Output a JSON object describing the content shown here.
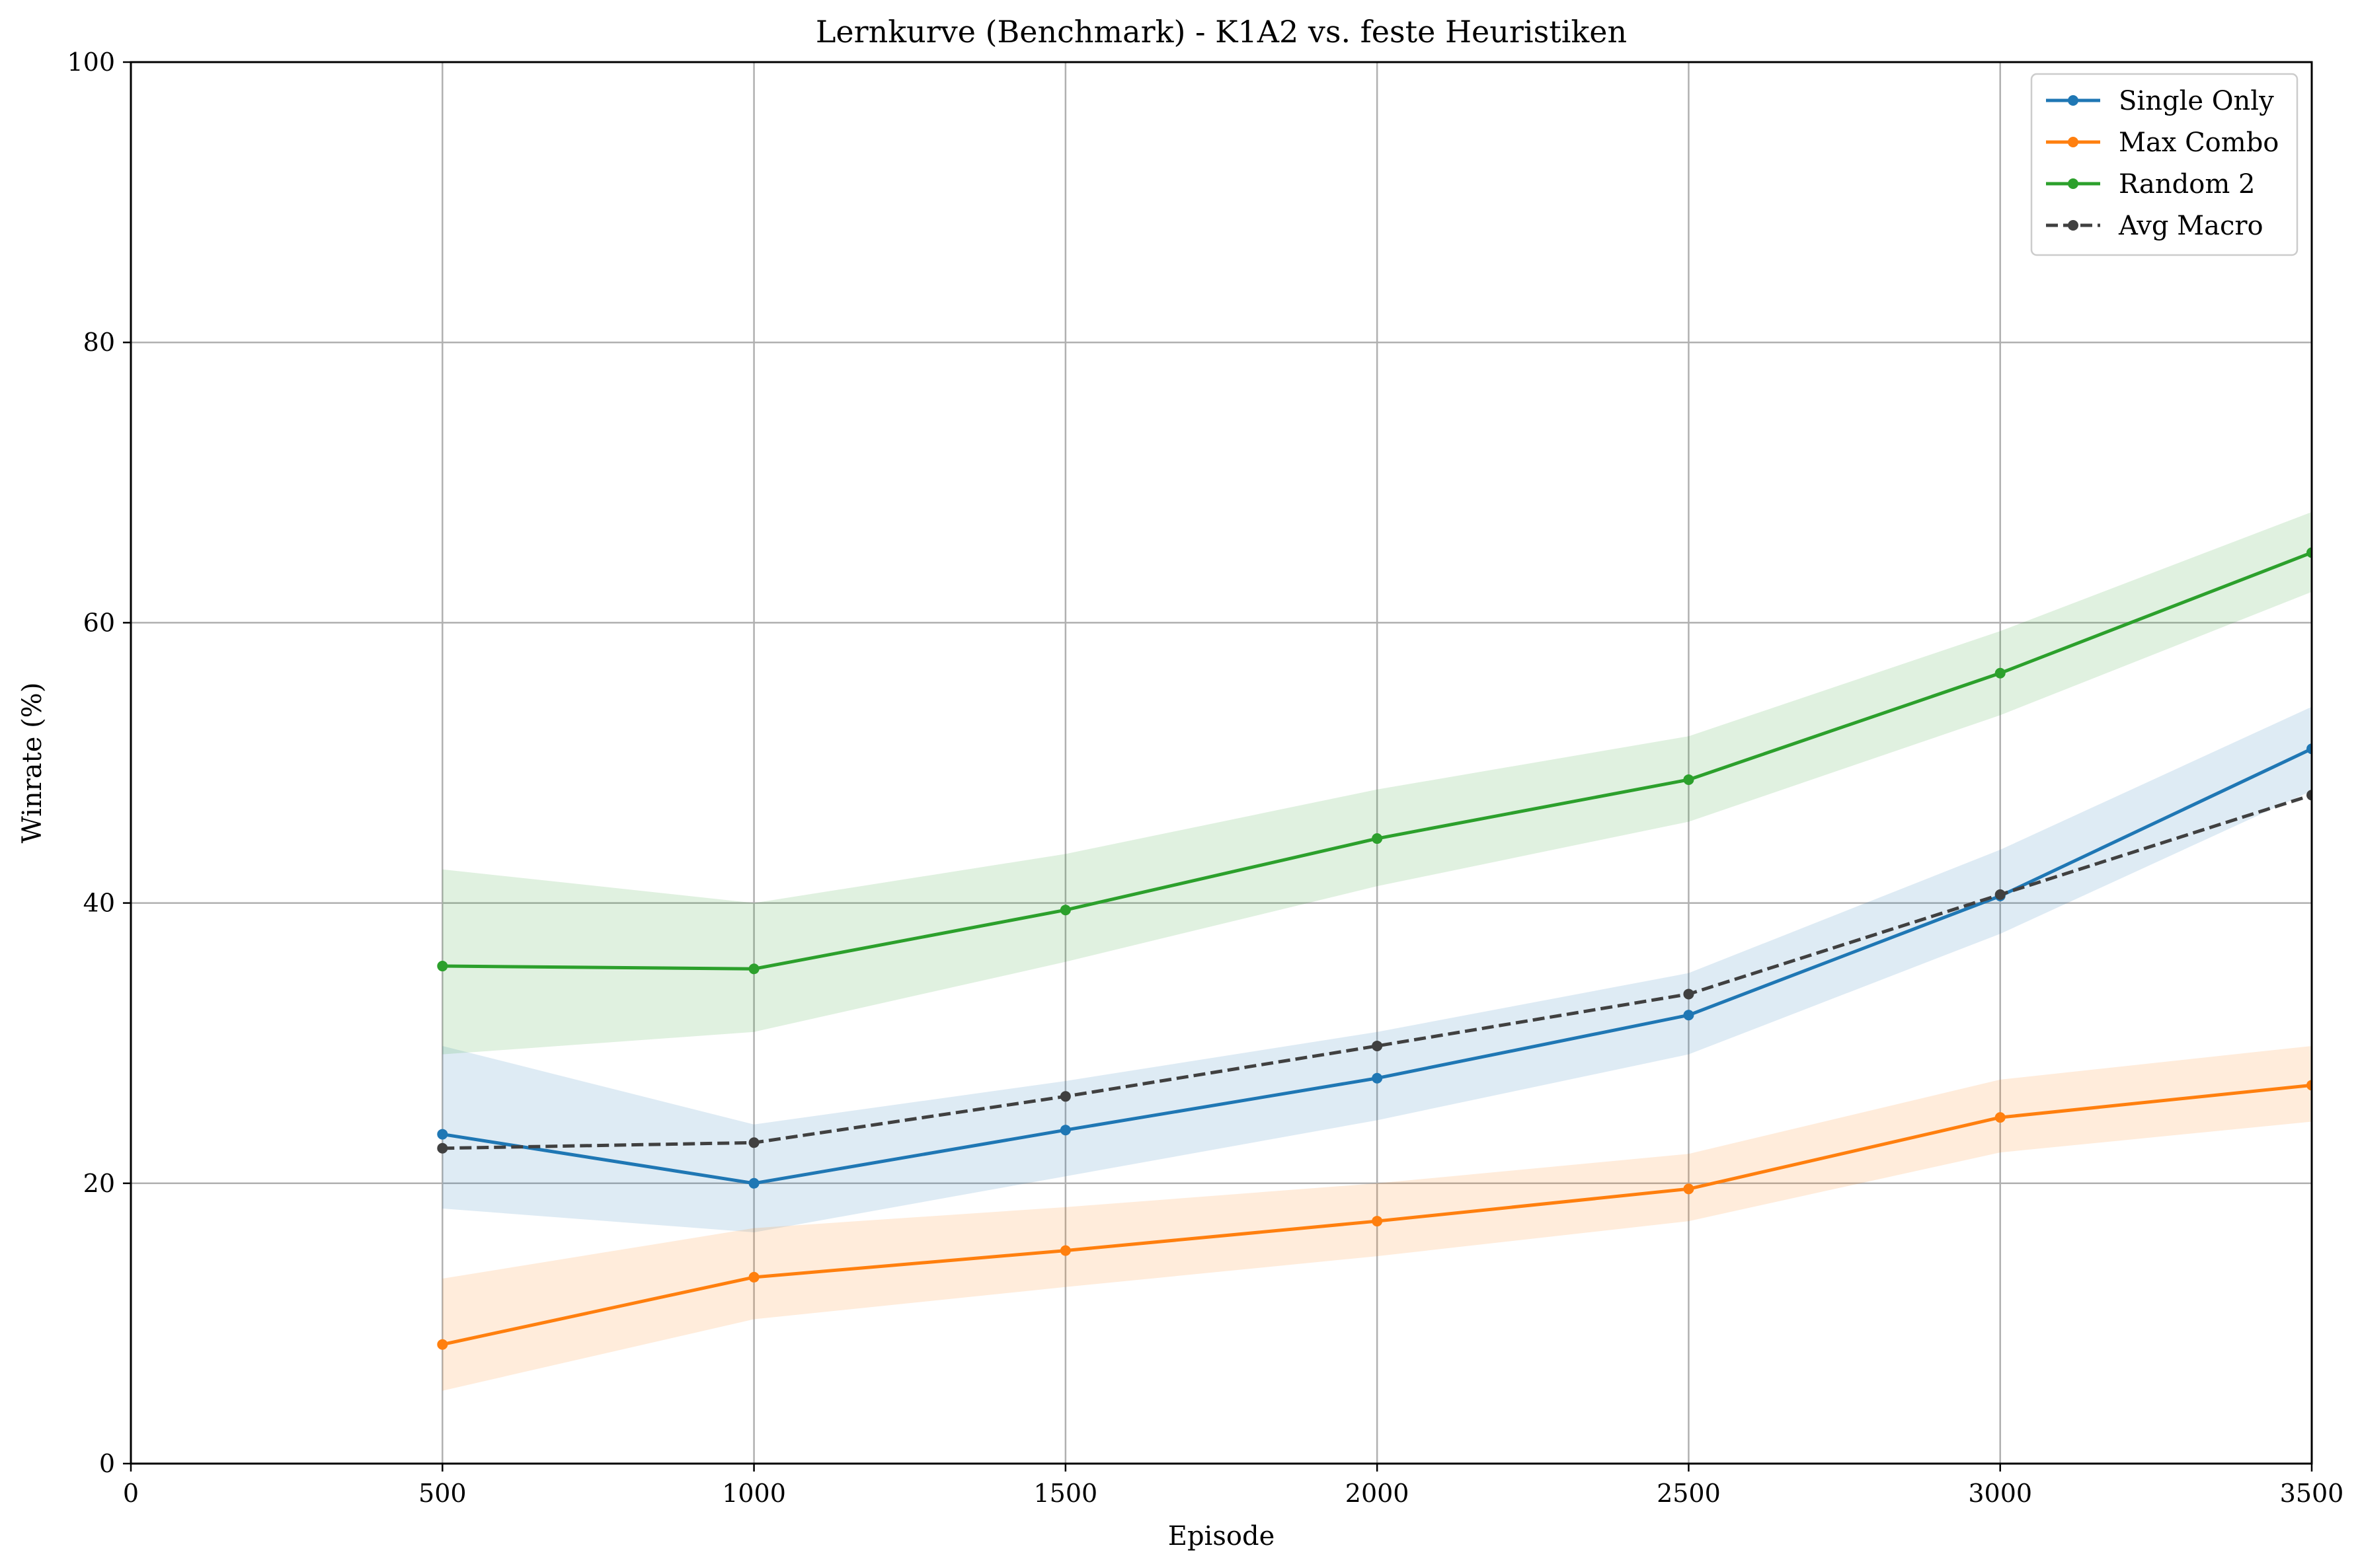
{
  "chart_data": {
    "type": "line",
    "title": "Lernkurve (Benchmark) - K1A2 vs. feste Heuristiken",
    "xlabel": "Episode",
    "ylabel": "Winrate (%)",
    "xlim": [
      0,
      3500
    ],
    "ylim": [
      0,
      100
    ],
    "xticks": [
      0,
      500,
      1000,
      1500,
      2000,
      2500,
      3000,
      3500
    ],
    "yticks": [
      0,
      20,
      40,
      60,
      80,
      100
    ],
    "grid": true,
    "legend_position": "top-right",
    "x": [
      500,
      1000,
      1500,
      2000,
      2500,
      3000,
      3500
    ],
    "series": [
      {
        "name": "Single Only",
        "color": "#1f77b4",
        "style": "solid",
        "values": [
          23.5,
          20.0,
          23.8,
          27.5,
          32.0,
          40.5,
          51.0
        ],
        "band_lower": [
          18.2,
          16.5,
          20.5,
          24.5,
          29.2,
          37.8,
          48.0
        ],
        "band_upper": [
          29.8,
          24.2,
          27.3,
          30.8,
          35.0,
          43.8,
          54.0
        ]
      },
      {
        "name": "Max Combo",
        "color": "#ff7f0e",
        "style": "solid",
        "values": [
          8.5,
          13.3,
          15.2,
          17.3,
          19.6,
          24.7,
          27.0
        ],
        "band_lower": [
          5.2,
          10.3,
          12.6,
          14.8,
          17.3,
          22.2,
          24.4
        ],
        "band_upper": [
          13.2,
          16.8,
          18.3,
          20.0,
          22.1,
          27.4,
          29.8
        ]
      },
      {
        "name": "Random 2",
        "color": "#2ca02c",
        "style": "solid",
        "values": [
          35.5,
          35.3,
          39.5,
          44.6,
          48.8,
          56.4,
          65.0
        ],
        "band_lower": [
          29.2,
          30.8,
          35.8,
          41.2,
          45.8,
          53.4,
          62.2
        ],
        "band_upper": [
          42.4,
          40.0,
          43.5,
          48.1,
          51.9,
          59.4,
          67.9
        ]
      },
      {
        "name": "Avg Macro",
        "color": "#404040",
        "style": "dashed",
        "values": [
          22.5,
          22.9,
          26.2,
          29.8,
          33.5,
          40.6,
          47.7
        ]
      }
    ]
  }
}
